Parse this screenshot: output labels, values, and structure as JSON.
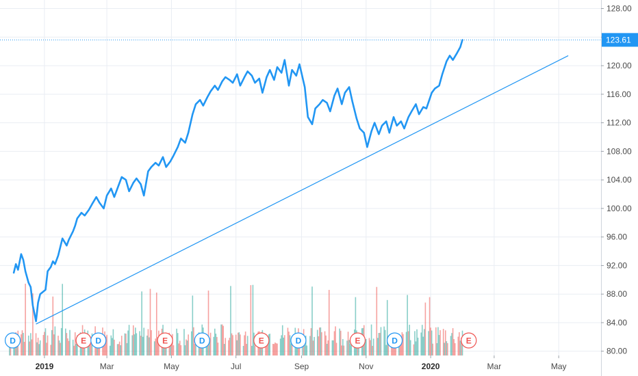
{
  "chart_data": {
    "type": "line",
    "series": [
      {
        "values": [
          [
            "2018-12-03",
            91.0
          ],
          [
            "2018-12-05",
            92.2
          ],
          [
            "2018-12-07",
            91.4
          ],
          [
            "2018-12-10",
            93.6
          ],
          [
            "2018-12-12",
            92.8
          ],
          [
            "2018-12-14",
            91.2
          ],
          [
            "2018-12-17",
            89.6
          ],
          [
            "2018-12-19",
            89.0
          ],
          [
            "2018-12-21",
            86.4
          ],
          [
            "2018-12-24",
            84.2
          ],
          [
            "2018-12-26",
            86.8
          ],
          [
            "2018-12-28",
            88.0
          ],
          [
            "2019-01-02",
            88.6
          ],
          [
            "2019-01-04",
            91.2
          ],
          [
            "2019-01-07",
            91.8
          ],
          [
            "2019-01-09",
            92.6
          ],
          [
            "2019-01-11",
            92.2
          ],
          [
            "2019-01-14",
            93.4
          ],
          [
            "2019-01-16",
            94.6
          ],
          [
            "2019-01-18",
            95.8
          ],
          [
            "2019-01-22",
            94.8
          ],
          [
            "2019-01-24",
            95.6
          ],
          [
            "2019-01-28",
            96.8
          ],
          [
            "2019-01-30",
            97.6
          ],
          [
            "2019-02-01",
            98.6
          ],
          [
            "2019-02-05",
            99.4
          ],
          [
            "2019-02-08",
            99.0
          ],
          [
            "2019-02-12",
            99.8
          ],
          [
            "2019-02-15",
            100.6
          ],
          [
            "2019-02-19",
            101.6
          ],
          [
            "2019-02-22",
            100.8
          ],
          [
            "2019-02-26",
            100.0
          ],
          [
            "2019-03-01",
            101.8
          ],
          [
            "2019-03-05",
            102.8
          ],
          [
            "2019-03-08",
            101.6
          ],
          [
            "2019-03-12",
            103.2
          ],
          [
            "2019-03-15",
            104.4
          ],
          [
            "2019-03-19",
            104.0
          ],
          [
            "2019-03-22",
            102.4
          ],
          [
            "2019-03-26",
            103.6
          ],
          [
            "2019-03-29",
            104.2
          ],
          [
            "2019-04-02",
            103.4
          ],
          [
            "2019-04-05",
            101.8
          ],
          [
            "2019-04-09",
            105.2
          ],
          [
            "2019-04-12",
            105.8
          ],
          [
            "2019-04-16",
            106.4
          ],
          [
            "2019-04-19",
            106.0
          ],
          [
            "2019-04-23",
            107.2
          ],
          [
            "2019-04-26",
            105.8
          ],
          [
            "2019-04-30",
            106.6
          ],
          [
            "2019-05-03",
            107.4
          ],
          [
            "2019-05-07",
            108.6
          ],
          [
            "2019-05-10",
            109.8
          ],
          [
            "2019-05-14",
            109.2
          ],
          [
            "2019-05-17",
            110.6
          ],
          [
            "2019-05-21",
            113.2
          ],
          [
            "2019-05-24",
            114.6
          ],
          [
            "2019-05-28",
            115.2
          ],
          [
            "2019-05-31",
            114.4
          ],
          [
            "2019-06-04",
            115.6
          ],
          [
            "2019-06-07",
            116.4
          ],
          [
            "2019-06-11",
            117.2
          ],
          [
            "2019-06-14",
            116.6
          ],
          [
            "2019-06-18",
            117.8
          ],
          [
            "2019-06-21",
            118.4
          ],
          [
            "2019-06-25",
            118.0
          ],
          [
            "2019-06-28",
            117.6
          ],
          [
            "2019-07-02",
            118.8
          ],
          [
            "2019-07-05",
            117.2
          ],
          [
            "2019-07-09",
            118.4
          ],
          [
            "2019-07-12",
            119.2
          ],
          [
            "2019-07-16",
            118.6
          ],
          [
            "2019-07-19",
            117.6
          ],
          [
            "2019-07-23",
            118.2
          ],
          [
            "2019-07-26",
            116.2
          ],
          [
            "2019-07-30",
            118.4
          ],
          [
            "2019-08-02",
            119.4
          ],
          [
            "2019-08-06",
            118.0
          ],
          [
            "2019-08-09",
            119.8
          ],
          [
            "2019-08-13",
            119.0
          ],
          [
            "2019-08-16",
            120.8
          ],
          [
            "2019-08-20",
            117.2
          ],
          [
            "2019-08-23",
            119.4
          ],
          [
            "2019-08-27",
            118.6
          ],
          [
            "2019-08-30",
            120.2
          ],
          [
            "2019-09-04",
            117.0
          ],
          [
            "2019-09-07",
            112.8
          ],
          [
            "2019-09-11",
            111.8
          ],
          [
            "2019-09-14",
            114.0
          ],
          [
            "2019-09-18",
            114.6
          ],
          [
            "2019-09-21",
            115.2
          ],
          [
            "2019-09-25",
            114.8
          ],
          [
            "2019-09-28",
            113.6
          ],
          [
            "2019-10-02",
            115.8
          ],
          [
            "2019-10-05",
            116.8
          ],
          [
            "2019-10-09",
            114.6
          ],
          [
            "2019-10-12",
            116.2
          ],
          [
            "2019-10-16",
            117.0
          ],
          [
            "2019-10-19",
            115.0
          ],
          [
            "2019-10-23",
            112.6
          ],
          [
            "2019-10-26",
            111.2
          ],
          [
            "2019-10-30",
            110.6
          ],
          [
            "2019-11-02",
            108.6
          ],
          [
            "2019-11-06",
            110.8
          ],
          [
            "2019-11-09",
            112.0
          ],
          [
            "2019-11-13",
            110.4
          ],
          [
            "2019-11-16",
            111.6
          ],
          [
            "2019-11-20",
            112.2
          ],
          [
            "2019-11-23",
            110.6
          ],
          [
            "2019-11-27",
            112.8
          ],
          [
            "2019-11-30",
            111.6
          ],
          [
            "2019-12-04",
            112.2
          ],
          [
            "2019-12-07",
            111.2
          ],
          [
            "2019-12-11",
            112.8
          ],
          [
            "2019-12-14",
            113.6
          ],
          [
            "2019-12-18",
            114.6
          ],
          [
            "2019-12-21",
            113.2
          ],
          [
            "2019-12-25",
            114.2
          ],
          [
            "2019-12-28",
            114.0
          ],
          [
            "2020-01-02",
            116.2
          ],
          [
            "2020-01-05",
            116.8
          ],
          [
            "2020-01-09",
            117.2
          ],
          [
            "2020-01-12",
            118.8
          ],
          [
            "2020-01-16",
            120.6
          ],
          [
            "2020-01-19",
            121.4
          ],
          [
            "2020-01-22",
            120.8
          ],
          [
            "2020-01-26",
            121.8
          ],
          [
            "2020-01-29",
            122.6
          ],
          [
            "2020-01-31",
            123.61
          ]
        ]
      }
    ],
    "trendline": {
      "from": [
        "2018-12-24",
        83.8
      ],
      "to": [
        "2020-05-10",
        121.4
      ]
    },
    "price_line_value": 123.61,
    "current_price_label": "123.61",
    "ylim": [
      79.4,
      129.2
    ],
    "xlim": [
      "2018-11-20",
      "2020-06-10"
    ],
    "y_ticks": [
      "80.00",
      "84.00",
      "88.00",
      "92.00",
      "96.00",
      "100.00",
      "104.00",
      "108.00",
      "112.00",
      "116.00",
      "120.00",
      "124.00",
      "128.00"
    ],
    "x_ticks": [
      {
        "date": "2019-01-01",
        "label": "2019",
        "bold": true
      },
      {
        "date": "2019-03-01",
        "label": "Mar",
        "bold": false
      },
      {
        "date": "2019-05-01",
        "label": "May",
        "bold": false
      },
      {
        "date": "2019-07-01",
        "label": "Jul",
        "bold": false
      },
      {
        "date": "2019-09-01",
        "label": "Sep",
        "bold": false
      },
      {
        "date": "2019-11-01",
        "label": "Nov",
        "bold": false
      },
      {
        "date": "2020-01-01",
        "label": "2020",
        "bold": true
      },
      {
        "date": "2020-03-01",
        "label": "Mar",
        "bold": false
      },
      {
        "date": "2020-05-01",
        "label": "May",
        "bold": false
      }
    ],
    "event_markers": [
      {
        "date": "2018-12-02",
        "label": "D",
        "kind": "dividend"
      },
      {
        "date": "2019-02-07",
        "label": "E",
        "kind": "earnings"
      },
      {
        "date": "2019-02-21",
        "label": "D",
        "kind": "dividend"
      },
      {
        "date": "2019-04-25",
        "label": "E",
        "kind": "earnings"
      },
      {
        "date": "2019-05-30",
        "label": "D",
        "kind": "dividend"
      },
      {
        "date": "2019-07-25",
        "label": "E",
        "kind": "earnings"
      },
      {
        "date": "2019-08-29",
        "label": "D",
        "kind": "dividend"
      },
      {
        "date": "2019-10-24",
        "label": "E",
        "kind": "earnings"
      },
      {
        "date": "2019-11-28",
        "label": "D",
        "kind": "dividend"
      },
      {
        "date": "2020-02-06",
        "label": "E",
        "kind": "earnings"
      }
    ],
    "colors": {
      "price_line": "#2196f3",
      "trendline": "#2196f3",
      "volume_up": "#26a69a",
      "volume_down": "#ef5350",
      "grid": "#e9edf3",
      "dividend": "#2196f3",
      "earnings": "#ef5350",
      "axis_text": "#4a4a4a"
    },
    "grid": true
  }
}
